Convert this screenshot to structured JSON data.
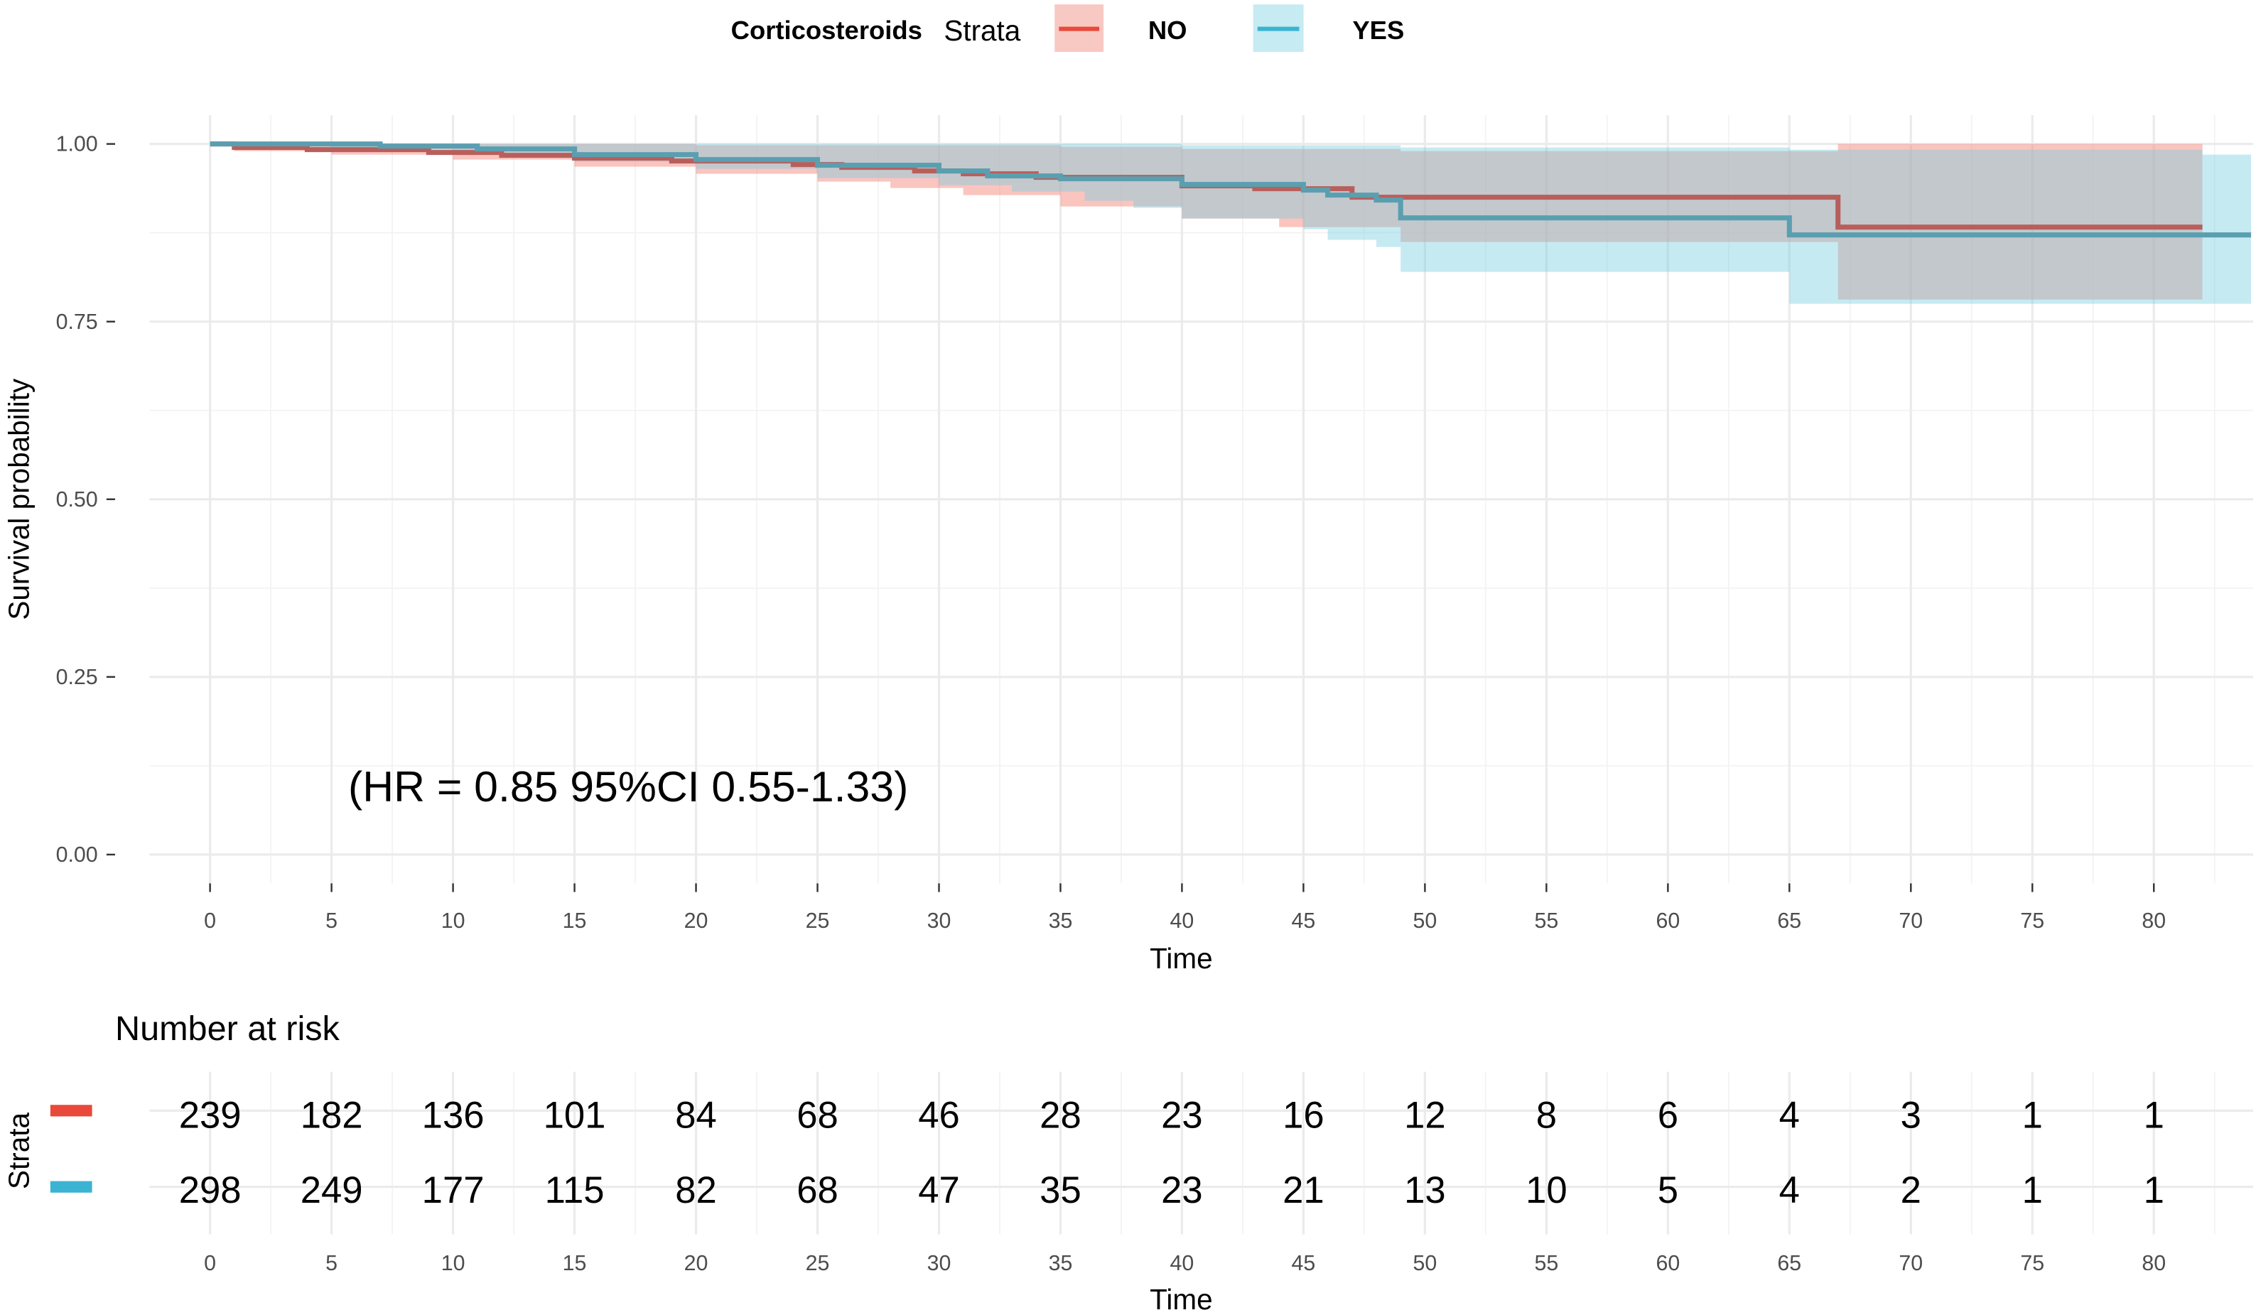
{
  "chart_data": {
    "type": "line",
    "subtype": "kaplan-meier",
    "legend": {
      "title": "Corticosteroids",
      "strata_label": "Strata",
      "position": "top",
      "entries": [
        "NO",
        "YES"
      ]
    },
    "xlabel": "Time",
    "ylabel": "Survival probability",
    "xlim": [
      0,
      84
    ],
    "ylim": [
      0,
      1
    ],
    "x_ticks": [
      "0",
      "5",
      "10",
      "15",
      "20",
      "25",
      "30",
      "35",
      "40",
      "45",
      "50",
      "55",
      "60",
      "65",
      "70",
      "75",
      "80"
    ],
    "y_ticks": [
      "0.00",
      "0.25",
      "0.50",
      "0.75",
      "1.00"
    ],
    "grid": true,
    "annotation": "(HR = 0.85 95%CI 0.55-1.33)",
    "colors": {
      "NO": "#b85f5c",
      "YES": "#5a9fb0",
      "NO_key": "#e8493a",
      "YES_key": "#3bb3d3"
    },
    "series": [
      {
        "name": "NO",
        "steps": [
          [
            0,
            1
          ],
          [
            1,
            0.995
          ],
          [
            4,
            0.992
          ],
          [
            9,
            0.988
          ],
          [
            12,
            0.984
          ],
          [
            15,
            0.98
          ],
          [
            19,
            0.976
          ],
          [
            24,
            0.971
          ],
          [
            26,
            0.967
          ],
          [
            29,
            0.962
          ],
          [
            31,
            0.958
          ],
          [
            34,
            0.953
          ],
          [
            40,
            0.941
          ],
          [
            43,
            0.937
          ],
          [
            47,
            0.925
          ],
          [
            67,
            0.883
          ]
        ],
        "end": 82,
        "ci_lower": [
          [
            0,
            1
          ],
          [
            1,
            0.99
          ],
          [
            5,
            0.985
          ],
          [
            10,
            0.978
          ],
          [
            15,
            0.968
          ],
          [
            20,
            0.958
          ],
          [
            25,
            0.947
          ],
          [
            28,
            0.938
          ],
          [
            31,
            0.928
          ],
          [
            35,
            0.912
          ],
          [
            40,
            0.895
          ],
          [
            44,
            0.883
          ],
          [
            49,
            0.862
          ],
          [
            67,
            0.781
          ]
        ],
        "ci_upper": [
          [
            0,
            1
          ],
          [
            20,
            0.998
          ],
          [
            35,
            0.996
          ],
          [
            40,
            0.993
          ],
          [
            49,
            0.99
          ],
          [
            67,
            1.0
          ]
        ]
      },
      {
        "name": "YES",
        "steps": [
          [
            0,
            1
          ],
          [
            7,
            0.997
          ],
          [
            11,
            0.993
          ],
          [
            15,
            0.985
          ],
          [
            20,
            0.978
          ],
          [
            25,
            0.97
          ],
          [
            30,
            0.962
          ],
          [
            32,
            0.955
          ],
          [
            35,
            0.951
          ],
          [
            40,
            0.943
          ],
          [
            45,
            0.935
          ],
          [
            46,
            0.928
          ],
          [
            48,
            0.921
          ],
          [
            49,
            0.896
          ],
          [
            65,
            0.872
          ]
        ],
        "end": 84,
        "ci_lower": [
          [
            0,
            1
          ],
          [
            5,
            0.993
          ],
          [
            10,
            0.985
          ],
          [
            15,
            0.975
          ],
          [
            20,
            0.965
          ],
          [
            25,
            0.952
          ],
          [
            30,
            0.942
          ],
          [
            33,
            0.933
          ],
          [
            36,
            0.92
          ],
          [
            38,
            0.91
          ],
          [
            40,
            0.895
          ],
          [
            45,
            0.88
          ],
          [
            46,
            0.865
          ],
          [
            48,
            0.855
          ],
          [
            49,
            0.82
          ],
          [
            65,
            0.775
          ]
        ],
        "ci_upper": [
          [
            0,
            1
          ],
          [
            40,
            0.998
          ],
          [
            49,
            0.995
          ],
          [
            65,
            0.992
          ],
          [
            82,
            0.985
          ]
        ]
      }
    ],
    "risk_table": {
      "title": "Number at risk",
      "ylabel": "Strata",
      "xlabel": "Time",
      "times": [
        "0",
        "5",
        "10",
        "15",
        "20",
        "25",
        "30",
        "35",
        "40",
        "45",
        "50",
        "55",
        "60",
        "65",
        "70",
        "75",
        "80"
      ],
      "rows": [
        {
          "name": "NO",
          "values": [
            "239",
            "182",
            "136",
            "101",
            "84",
            "68",
            "46",
            "28",
            "23",
            "16",
            "12",
            "8",
            "6",
            "4",
            "3",
            "1",
            "1"
          ]
        },
        {
          "name": "YES",
          "values": [
            "298",
            "249",
            "177",
            "115",
            "82",
            "68",
            "47",
            "35",
            "23",
            "21",
            "13",
            "10",
            "5",
            "4",
            "2",
            "1",
            "1"
          ]
        }
      ]
    }
  }
}
